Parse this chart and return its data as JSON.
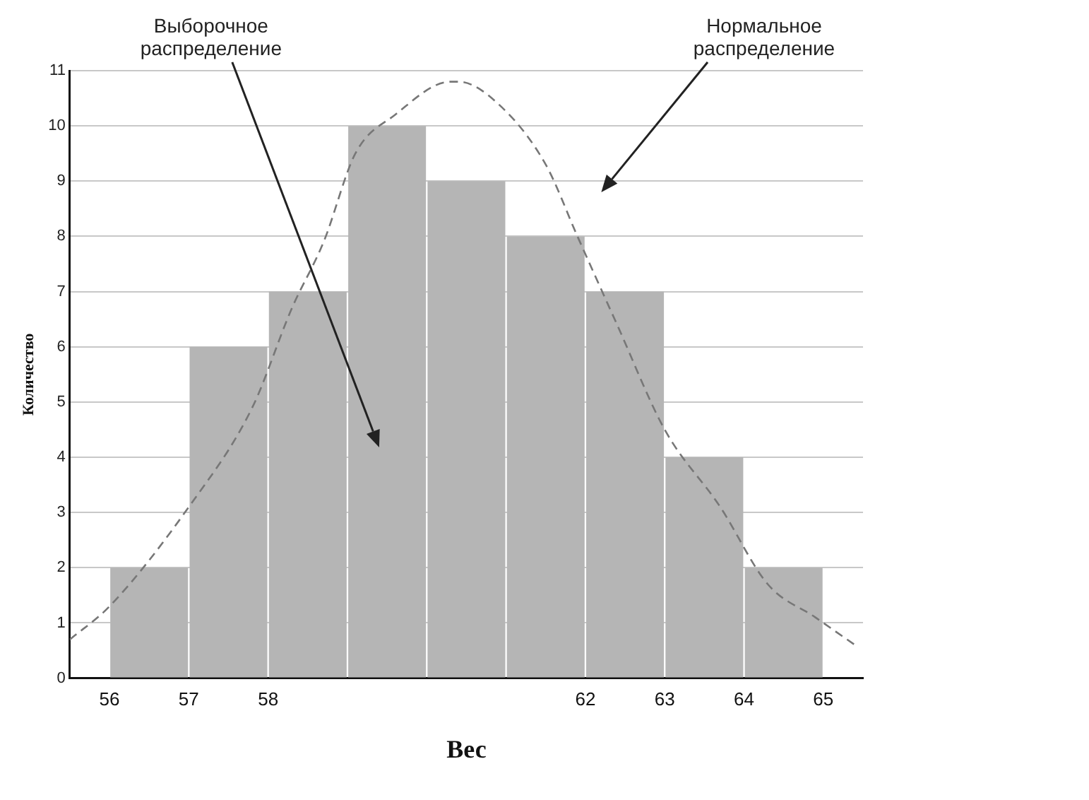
{
  "chart_data": {
    "type": "histogram",
    "xlabel": "Вес",
    "ylabel": "Количество",
    "bins": [
      56,
      57,
      58,
      59,
      60,
      61,
      62,
      63,
      64,
      65
    ],
    "values": [
      2,
      6,
      7,
      10,
      9,
      8,
      7,
      4,
      2
    ],
    "color": "#b5b5b5",
    "xlim": [
      55.5,
      65.5
    ],
    "xticks": [
      56,
      57,
      58,
      62,
      63,
      64,
      65
    ],
    "ylim": [
      0,
      11
    ],
    "yticks": [
      0,
      1,
      2,
      3,
      4,
      5,
      6,
      7,
      8,
      9,
      10,
      11
    ],
    "grid": "y",
    "series": [
      {
        "type": "line",
        "color": "#777777",
        "line_style": "dashed",
        "marker": "none",
        "x": [
          55.5,
          56.0,
          57.0,
          57.8,
          58.3,
          58.7,
          59.1,
          59.6,
          60.3,
          60.4,
          60.9,
          61.5,
          61.9,
          62.4,
          63.0,
          63.7,
          64.3,
          64.9,
          65.4
        ],
        "values": [
          0.7,
          1.3,
          3.1,
          4.9,
          6.7,
          7.9,
          9.5,
          10.2,
          10.8,
          10.8,
          10.4,
          9.3,
          8.0,
          6.4,
          4.5,
          3.1,
          1.7,
          1.1,
          0.6
        ]
      }
    ],
    "annotations": [
      "Выборочное распределение",
      "Нормальное распределение"
    ]
  }
}
